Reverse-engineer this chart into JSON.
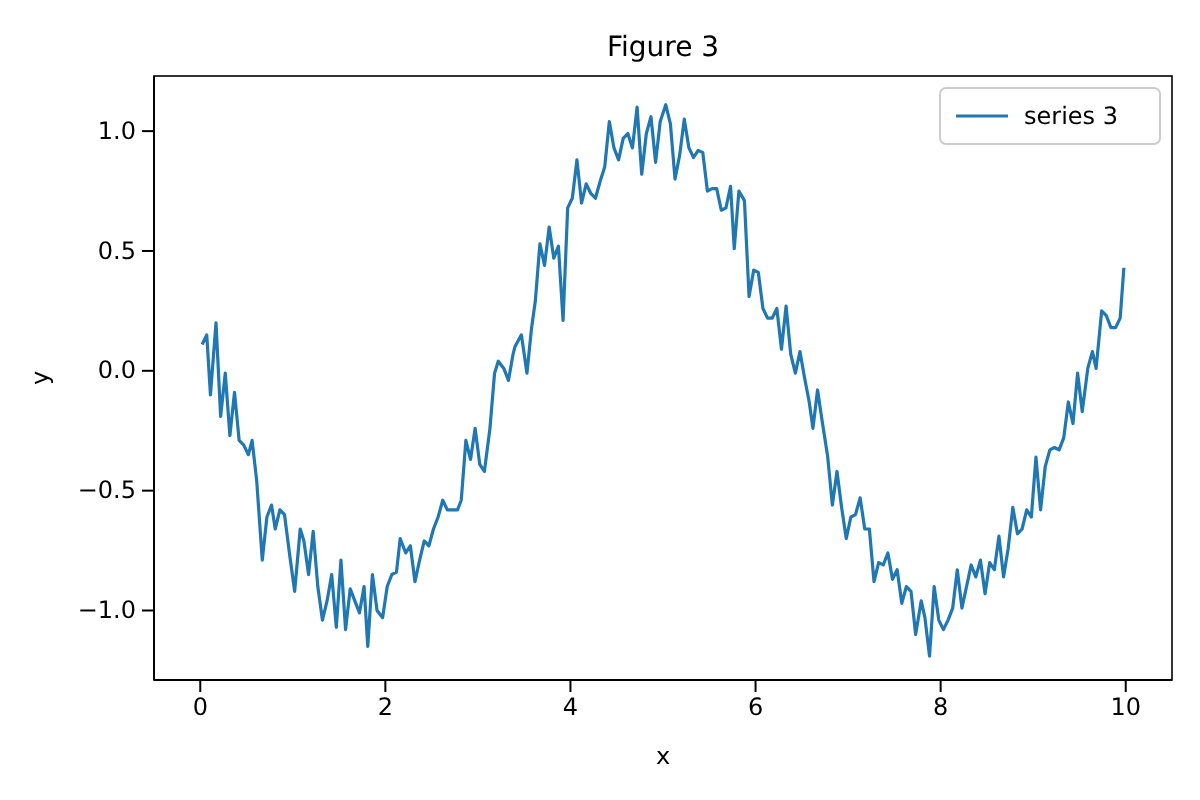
{
  "chart_data": {
    "type": "line",
    "title": "Figure 3",
    "xlabel": "x",
    "ylabel": "y",
    "xlim": [
      -0.5,
      10.5
    ],
    "xticks": [
      0,
      2,
      4,
      6,
      8,
      10
    ],
    "ylim": [
      -1.29,
      1.23
    ],
    "yticks": [
      {
        "value": -1,
        "label": "−1.0"
      },
      {
        "value": -0.5,
        "label": "−0.5"
      },
      {
        "value": 0,
        "label": "0.0"
      },
      {
        "value": 0.5,
        "label": "0.5"
      },
      {
        "value": 1,
        "label": "1.0"
      }
    ],
    "legend": "top right",
    "grid": false,
    "line_style": "solid",
    "marker": "none",
    "series": [
      {
        "name": "series 3",
        "color": "#1f77b4",
        "x": [
          0.02,
          0.07,
          0.11,
          0.17,
          0.22,
          0.27,
          0.32,
          0.37,
          0.42,
          0.47,
          0.52,
          0.56,
          0.61,
          0.67,
          0.72,
          0.77,
          0.81,
          0.86,
          0.91,
          0.97,
          1.02,
          1.08,
          1.12,
          1.17,
          1.22,
          1.27,
          1.32,
          1.37,
          1.42,
          1.47,
          1.52,
          1.57,
          1.62,
          1.67,
          1.72,
          1.77,
          1.81,
          1.86,
          1.91,
          1.97,
          2.02,
          2.07,
          2.12,
          2.16,
          2.22,
          2.27,
          2.32,
          2.37,
          2.42,
          2.47,
          2.52,
          2.57,
          2.62,
          2.67,
          2.72,
          2.78,
          2.82,
          2.87,
          2.92,
          2.97,
          3.02,
          3.07,
          3.13,
          3.18,
          3.22,
          3.28,
          3.33,
          3.38,
          3.4,
          3.47,
          3.53,
          3.58,
          3.62,
          3.67,
          3.72,
          3.77,
          3.82,
          3.87,
          3.92,
          3.97,
          4.02,
          4.07,
          4.12,
          4.17,
          4.22,
          4.27,
          4.32,
          4.37,
          4.42,
          4.47,
          4.52,
          4.57,
          4.62,
          4.67,
          4.72,
          4.77,
          4.82,
          4.87,
          4.92,
          4.97,
          5.03,
          5.08,
          5.13,
          5.18,
          5.23,
          5.28,
          5.33,
          5.38,
          5.43,
          5.48,
          5.53,
          5.58,
          5.63,
          5.68,
          5.73,
          5.77,
          5.82,
          5.88,
          5.93,
          5.98,
          6.03,
          6.08,
          6.13,
          6.18,
          6.23,
          6.28,
          6.33,
          6.38,
          6.43,
          6.48,
          6.53,
          6.58,
          6.62,
          6.67,
          6.72,
          6.78,
          6.83,
          6.88,
          6.93,
          6.98,
          7.03,
          7.08,
          7.13,
          7.18,
          7.23,
          7.28,
          7.33,
          7.38,
          7.43,
          7.48,
          7.53,
          7.58,
          7.63,
          7.68,
          7.73,
          7.79,
          7.83,
          7.88,
          7.93,
          7.98,
          8.03,
          8.08,
          8.13,
          8.18,
          8.23,
          8.28,
          8.33,
          8.38,
          8.43,
          8.48,
          8.53,
          8.58,
          8.63,
          8.68,
          8.73,
          8.78,
          8.83,
          8.88,
          8.93,
          8.98,
          9.03,
          9.08,
          9.13,
          9.18,
          9.23,
          9.28,
          9.33,
          9.38,
          9.43,
          9.48,
          9.53,
          9.59,
          9.64,
          9.68,
          9.74,
          9.79,
          9.84,
          9.89,
          9.94,
          9.98
        ],
        "values": [
          0.11,
          0.15,
          -0.1,
          0.2,
          -0.19,
          -0.01,
          -0.27,
          -0.09,
          -0.29,
          -0.31,
          -0.35,
          -0.29,
          -0.46,
          -0.79,
          -0.61,
          -0.56,
          -0.66,
          -0.58,
          -0.6,
          -0.78,
          -0.92,
          -0.66,
          -0.71,
          -0.85,
          -0.67,
          -0.9,
          -1.04,
          -0.96,
          -0.85,
          -1.07,
          -0.79,
          -1.08,
          -0.91,
          -0.96,
          -1.01,
          -0.9,
          -1.15,
          -0.85,
          -1.0,
          -1.03,
          -0.9,
          -0.85,
          -0.84,
          -0.7,
          -0.76,
          -0.73,
          -0.88,
          -0.79,
          -0.71,
          -0.73,
          -0.66,
          -0.61,
          -0.54,
          -0.58,
          -0.58,
          -0.58,
          -0.54,
          -0.29,
          -0.37,
          -0.24,
          -0.39,
          -0.42,
          -0.24,
          -0.01,
          0.04,
          0.01,
          -0.04,
          0.07,
          0.1,
          0.15,
          -0.01,
          0.18,
          0.29,
          0.53,
          0.44,
          0.6,
          0.47,
          0.52,
          0.21,
          0.68,
          0.72,
          0.88,
          0.7,
          0.78,
          0.74,
          0.72,
          0.79,
          0.85,
          1.04,
          0.93,
          0.88,
          0.97,
          0.99,
          0.93,
          1.1,
          0.82,
          0.99,
          1.06,
          0.87,
          1.04,
          1.11,
          1.03,
          0.8,
          0.9,
          1.05,
          0.93,
          0.89,
          0.92,
          0.91,
          0.75,
          0.76,
          0.76,
          0.67,
          0.68,
          0.77,
          0.51,
          0.75,
          0.71,
          0.31,
          0.42,
          0.41,
          0.26,
          0.22,
          0.22,
          0.26,
          0.09,
          0.27,
          0.07,
          -0.01,
          0.08,
          -0.03,
          -0.13,
          -0.24,
          -0.08,
          -0.21,
          -0.36,
          -0.56,
          -0.42,
          -0.57,
          -0.7,
          -0.61,
          -0.6,
          -0.53,
          -0.66,
          -0.66,
          -0.88,
          -0.8,
          -0.81,
          -0.76,
          -0.87,
          -0.83,
          -0.97,
          -0.9,
          -0.92,
          -1.1,
          -0.96,
          -1.03,
          -1.19,
          -0.9,
          -1.04,
          -1.08,
          -1.04,
          -0.99,
          -0.83,
          -0.99,
          -0.9,
          -0.81,
          -0.86,
          -0.79,
          -0.93,
          -0.8,
          -0.83,
          -0.69,
          -0.86,
          -0.74,
          -0.57,
          -0.68,
          -0.66,
          -0.58,
          -0.61,
          -0.36,
          -0.58,
          -0.4,
          -0.33,
          -0.32,
          -0.33,
          -0.28,
          -0.13,
          -0.22,
          -0.01,
          -0.17,
          0.01,
          0.08,
          0.01,
          0.25,
          0.23,
          0.18,
          0.18,
          0.22,
          0.43
        ]
      }
    ]
  }
}
